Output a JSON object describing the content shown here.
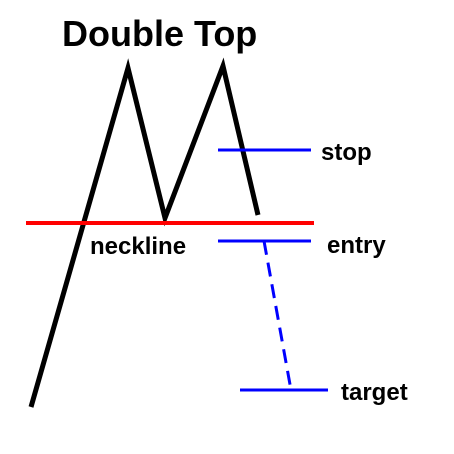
{
  "diagram": {
    "title": "Double Top",
    "labels": {
      "neckline": "neckline",
      "stop": "stop",
      "entry": "entry",
      "target": "target"
    },
    "colors": {
      "price_line": "#000000",
      "neckline": "#ff0000",
      "levels": "#0000ff",
      "text": "#000000",
      "background": "#ffffff"
    }
  }
}
